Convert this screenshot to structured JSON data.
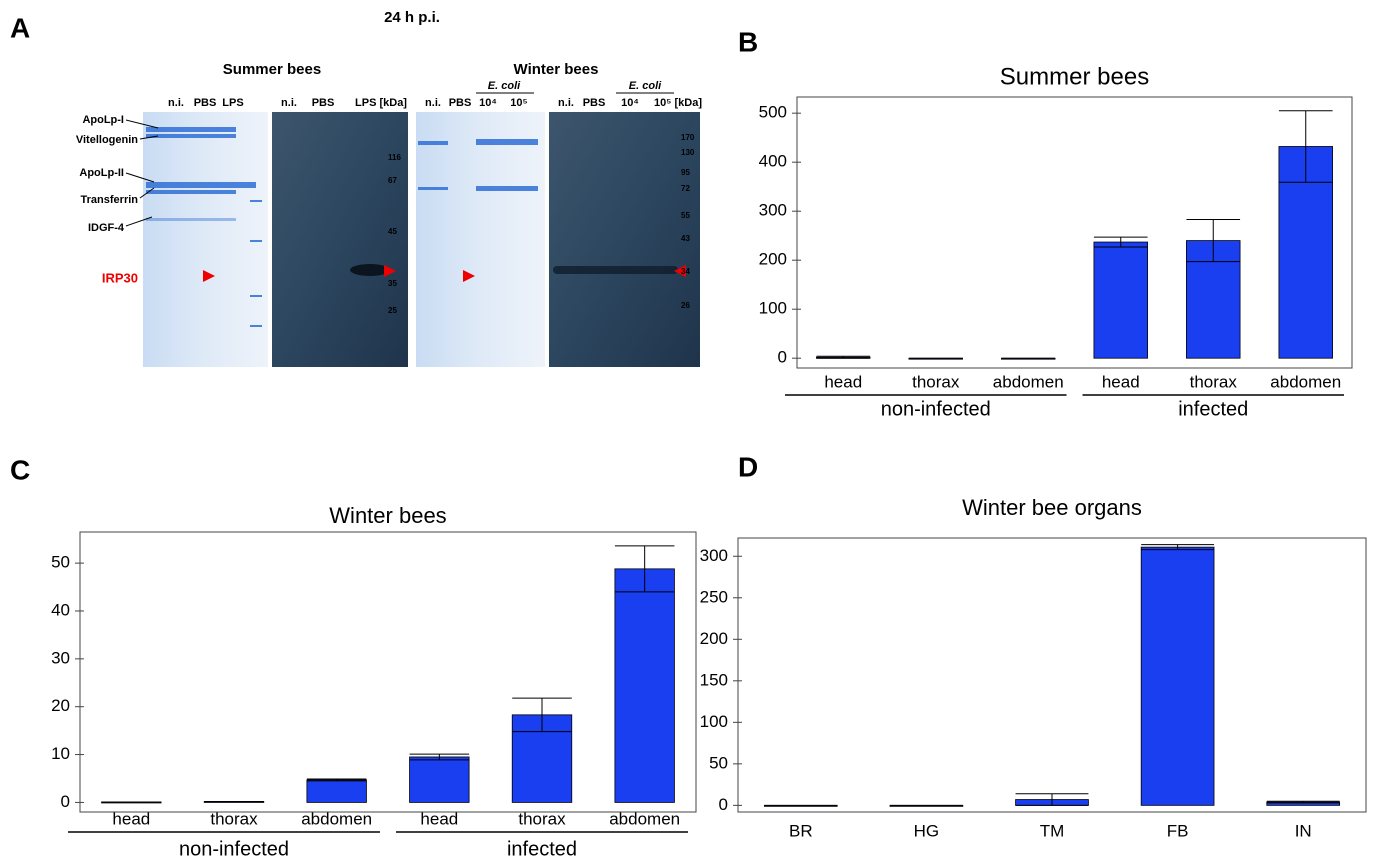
{
  "panel_labels": [
    "A",
    "B",
    "C",
    "D"
  ],
  "blot": {
    "time": "24 h p.i.",
    "summer_title": "Summer bees",
    "winter_title": "Winter bees",
    "summer_lanes": [
      "n.i.",
      "PBS",
      "LPS",
      "n.i.",
      "PBS",
      "LPS [kDa]"
    ],
    "winter_treatment": "E. coli",
    "winter_lanes": [
      "n.i.",
      "PBS",
      "10⁴",
      "10⁵",
      "n.i.",
      "PBS",
      "10⁴",
      "10⁵ [kDa]"
    ],
    "proteins": [
      "ApoLp-I",
      "Vitellogenin",
      "ApoLp-II",
      "Transferrin",
      "IDGF-4"
    ],
    "target": "IRP30",
    "summer_markers": [
      "116",
      "67",
      "45",
      "35",
      "25"
    ],
    "winter_markers": [
      "170",
      "130",
      "95",
      "72",
      "55",
      "43",
      "34",
      "26"
    ]
  },
  "chart_data": [
    {
      "type": "bar",
      "title": "Summer bees",
      "categories": [
        "head",
        "thorax",
        "abdomen",
        "head",
        "thorax",
        "abdomen"
      ],
      "groups": [
        "non-infected",
        "infected"
      ],
      "values": [
        2,
        0,
        0,
        237,
        240,
        432
      ],
      "errors": [
        2,
        0,
        0,
        10,
        43,
        73
      ],
      "color": "#1a3ff0",
      "ylim": [
        -20,
        533
      ],
      "yticks": [
        0,
        100,
        200,
        300,
        400,
        500
      ]
    },
    {
      "type": "bar",
      "title": "Winter bees",
      "categories": [
        "head",
        "thorax",
        "abdomen",
        "head",
        "thorax",
        "abdomen"
      ],
      "groups": [
        "non-infected",
        "infected"
      ],
      "values": [
        0.1,
        0.2,
        4.7,
        9.5,
        18.3,
        48.8
      ],
      "errors": [
        0,
        0,
        0.2,
        0.6,
        3.5,
        4.8
      ],
      "color": "#1a3ff0",
      "ylim": [
        -2,
        56.5
      ],
      "yticks": [
        0,
        10,
        20,
        30,
        40,
        50
      ]
    },
    {
      "type": "bar",
      "title": "Winter bee organs",
      "categories": [
        "BR",
        "HG",
        "TM",
        "FB",
        "IN"
      ],
      "values": [
        0,
        0,
        7,
        311,
        4
      ],
      "errors": [
        0,
        0,
        7,
        3,
        1
      ],
      "color": "#1a3ff0",
      "ylim": [
        -8,
        322
      ],
      "yticks": [
        0,
        50,
        100,
        150,
        200,
        250,
        300
      ]
    }
  ]
}
